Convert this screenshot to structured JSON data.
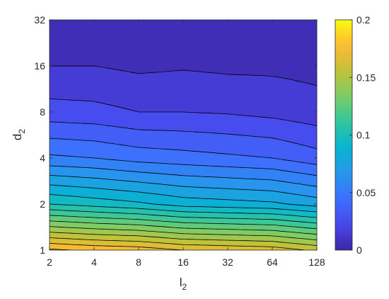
{
  "chart_data": {
    "type": "heatmap",
    "style": "filled-contour",
    "xlabel": "l",
    "xlabel_subscript": "2",
    "ylabel": "d",
    "ylabel_subscript": "2",
    "x_scale": "log2",
    "y_scale": "log2",
    "x": [
      2,
      4,
      8,
      16,
      32,
      64,
      128
    ],
    "y": [
      1,
      2,
      4,
      8,
      16,
      32
    ],
    "xlim": [
      2,
      128
    ],
    "ylim": [
      1,
      32
    ],
    "x_tick_labels": [
      "2",
      "4",
      "8",
      "16",
      "32",
      "64",
      "128"
    ],
    "y_tick_labels": [
      "1",
      "2",
      "4",
      "8",
      "16",
      "32"
    ],
    "z": [
      [
        0.182,
        0.178,
        0.176,
        0.17,
        0.168,
        0.166,
        0.158
      ],
      [
        0.1,
        0.096,
        0.092,
        0.086,
        0.084,
        0.082,
        0.076
      ],
      [
        0.052,
        0.05,
        0.046,
        0.044,
        0.042,
        0.04,
        0.034
      ],
      [
        0.024,
        0.023,
        0.02,
        0.02,
        0.019,
        0.017,
        0.014
      ],
      [
        0.01,
        0.01,
        0.008,
        0.009,
        0.008,
        0.008,
        0.007
      ],
      [
        0.004,
        0.004,
        0.003,
        0.003,
        0.003,
        0.003,
        0.003
      ]
    ],
    "contour_levels": [
      0.01,
      0.02,
      0.03,
      0.04,
      0.05,
      0.06,
      0.07,
      0.08,
      0.09,
      0.1,
      0.11,
      0.12,
      0.13,
      0.14,
      0.15,
      0.16,
      0.17,
      0.18
    ],
    "colorbar": {
      "colormap": "parula",
      "range": [
        0,
        0.2
      ],
      "ticks": [
        0,
        0.05,
        0.1,
        0.15,
        0.2
      ],
      "tick_labels": [
        "0",
        "0.05",
        "0.1",
        "0.15",
        "0.2"
      ]
    },
    "grid": false
  }
}
